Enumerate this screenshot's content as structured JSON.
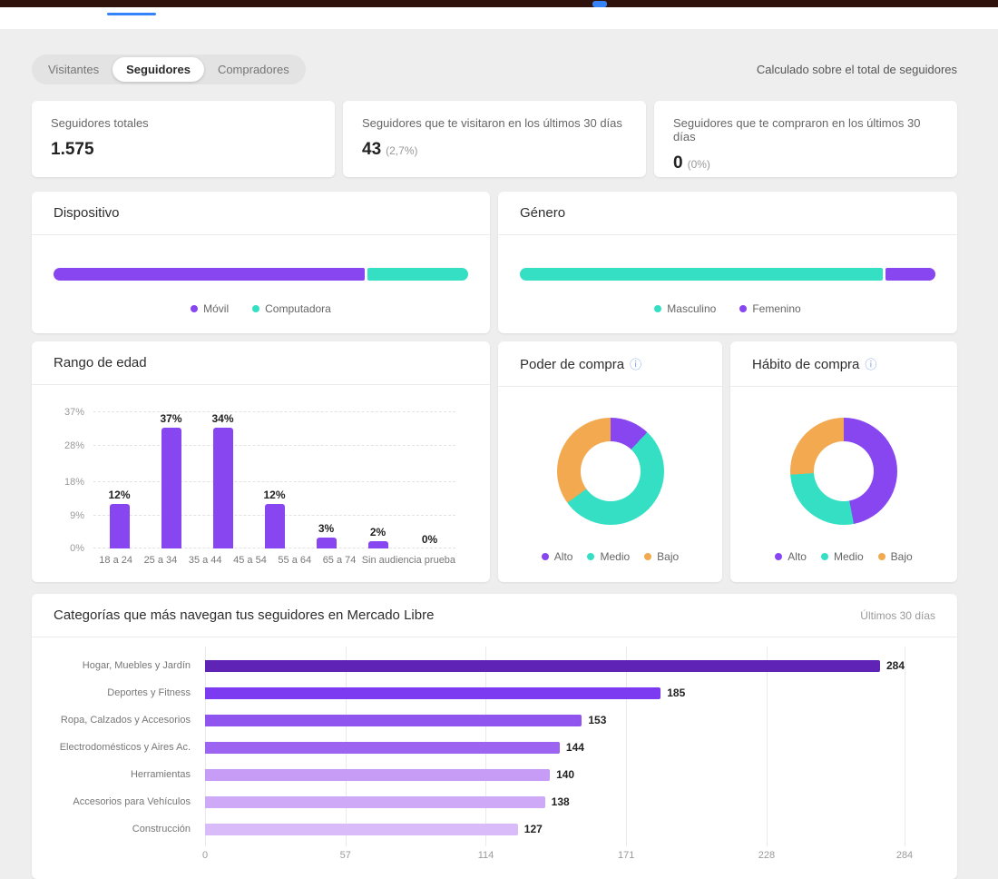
{
  "topbar": {
    "accent_color": "#3483fa"
  },
  "tabs_nav": {
    "items": [
      {
        "label": "Visitantes",
        "active": false
      },
      {
        "label": "Seguidores",
        "active": true
      },
      {
        "label": "Compradores",
        "active": false
      }
    ],
    "note": "Calculado sobre el total de seguidores"
  },
  "stats": [
    {
      "title": "Seguidores totales",
      "value": "1.575",
      "sub": ""
    },
    {
      "title": "Seguidores que te visitaron en los últimos 30 días",
      "value": "43",
      "sub": "(2,7%)"
    },
    {
      "title": "Seguidores que te compraron en los últimos 30 días",
      "value": "0",
      "sub": "(0%)"
    }
  ],
  "colors": {
    "purple": "#8746ef",
    "teal": "#35dfc4",
    "orange": "#f2a950",
    "accent_blue": "#3483fa"
  },
  "chart_data": [
    {
      "id": "dispositivo",
      "type": "bar",
      "variant": "stacked-horizontal",
      "title": "Dispositivo",
      "series": [
        {
          "name": "Móvil",
          "value": 75.5,
          "color": "#8746ef"
        },
        {
          "name": "Computadora",
          "value": 24.5,
          "color": "#35dfc4"
        }
      ]
    },
    {
      "id": "genero",
      "type": "bar",
      "variant": "stacked-horizontal",
      "title": "Género",
      "series": [
        {
          "name": "Masculino",
          "value": 88,
          "color": "#35dfc4"
        },
        {
          "name": "Femenino",
          "value": 12,
          "color": "#8746ef"
        }
      ]
    },
    {
      "id": "edad",
      "type": "bar",
      "title": "Rango de edad",
      "categories": [
        "18 a 24",
        "25 a 34",
        "35 a 44",
        "45 a 54",
        "55 a 64",
        "65 a 74",
        "Sin audiencia prueba"
      ],
      "values": [
        12,
        37,
        34,
        12,
        3,
        2,
        0
      ],
      "value_labels": [
        "12%",
        "37%",
        "34%",
        "12%",
        "3%",
        "2%",
        "0%"
      ],
      "ymax": 37,
      "yticks": [
        {
          "value": 37,
          "label": "37%"
        },
        {
          "value": 28,
          "label": "28%"
        },
        {
          "value": 18,
          "label": "18%"
        },
        {
          "value": 9,
          "label": "9%"
        },
        {
          "value": 0,
          "label": "0%"
        }
      ],
      "bar_color": "#8746ef"
    },
    {
      "id": "poder",
      "type": "pie",
      "title": "Poder de compra",
      "slices": [
        {
          "label": "Alto",
          "value": 12,
          "color": "#8746ef"
        },
        {
          "label": "Medio",
          "value": 53,
          "color": "#35dfc4"
        },
        {
          "label": "Bajo",
          "value": 35,
          "color": "#f2a950"
        }
      ]
    },
    {
      "id": "habito",
      "type": "pie",
      "title": "Hábito de compra",
      "slices": [
        {
          "label": "Alto",
          "value": 47,
          "color": "#8746ef"
        },
        {
          "label": "Medio",
          "value": 27,
          "color": "#35dfc4"
        },
        {
          "label": "Bajo",
          "value": 26,
          "color": "#f2a950"
        }
      ]
    },
    {
      "id": "categorias",
      "type": "bar",
      "variant": "horizontal",
      "title": "Categorías que más navegan tus seguidores en Mercado Libre",
      "period": "Últimos 30 días",
      "categories": [
        "Hogar, Muebles y Jardín",
        "Deportes y Fitness",
        "Ropa, Calzados y Accesorios",
        "Electrodomésticos y Aires Ac.",
        "Herramientas",
        "Accesorios para Vehículos",
        "Construcción"
      ],
      "values": [
        284,
        185,
        153,
        144,
        140,
        138,
        127
      ],
      "bar_colors": [
        "#5f24b5",
        "#7c3bf0",
        "#8f55ee",
        "#9c64f0",
        "#c69cf6",
        "#cda9f7",
        "#d9bbf9"
      ],
      "xticks": [
        0,
        57,
        114,
        171,
        228,
        284
      ],
      "xmax": 284
    }
  ]
}
